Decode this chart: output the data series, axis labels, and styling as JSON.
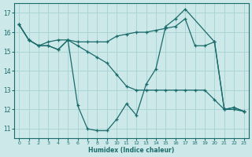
{
  "bg_color": "#cce8e8",
  "grid_color": "#aad4d4",
  "line_color": "#1a6b6b",
  "marker": "+",
  "xlabel": "Humidex (Indice chaleur)",
  "ylim": [
    10.5,
    17.5
  ],
  "xlim": [
    -0.5,
    23.5
  ],
  "yticks": [
    11,
    12,
    13,
    14,
    15,
    16,
    17
  ],
  "xticks": [
    0,
    1,
    2,
    3,
    4,
    5,
    6,
    7,
    8,
    9,
    10,
    11,
    12,
    13,
    14,
    15,
    16,
    17,
    18,
    19,
    20,
    21,
    22,
    23
  ],
  "series": [
    {
      "x": [
        0,
        1,
        2,
        3,
        4,
        5,
        6,
        7,
        8,
        9,
        10,
        11,
        12,
        13,
        14,
        15,
        16,
        17,
        20,
        21,
        22,
        23
      ],
      "y": [
        16.4,
        15.6,
        15.3,
        15.3,
        15.1,
        15.6,
        12.2,
        11.0,
        10.9,
        10.9,
        11.5,
        12.3,
        11.7,
        13.3,
        14.1,
        16.3,
        16.7,
        17.2,
        15.5,
        12.0,
        12.1,
        11.9
      ]
    },
    {
      "x": [
        0,
        1,
        2,
        3,
        4,
        5,
        6,
        7,
        8,
        9,
        10,
        11,
        12,
        13,
        14,
        15,
        16,
        17,
        18,
        19,
        20,
        21,
        22,
        23
      ],
      "y": [
        16.4,
        15.6,
        15.3,
        15.5,
        15.6,
        15.6,
        15.5,
        15.5,
        15.5,
        15.5,
        15.8,
        15.9,
        16.0,
        16.0,
        16.1,
        16.2,
        16.3,
        16.7,
        15.3,
        15.3,
        15.5,
        12.0,
        12.1,
        11.9
      ]
    },
    {
      "x": [
        0,
        1,
        2,
        3,
        4,
        5,
        6,
        7,
        8,
        9,
        10,
        11,
        12,
        13,
        14,
        15,
        16,
        17,
        18,
        19,
        20,
        21,
        22,
        23
      ],
      "y": [
        16.4,
        15.6,
        15.3,
        15.3,
        15.1,
        15.6,
        15.3,
        15.0,
        14.7,
        14.4,
        13.8,
        13.2,
        13.0,
        13.0,
        13.0,
        13.0,
        13.0,
        13.0,
        13.0,
        13.0,
        12.5,
        12.0,
        12.0,
        11.9
      ]
    }
  ]
}
